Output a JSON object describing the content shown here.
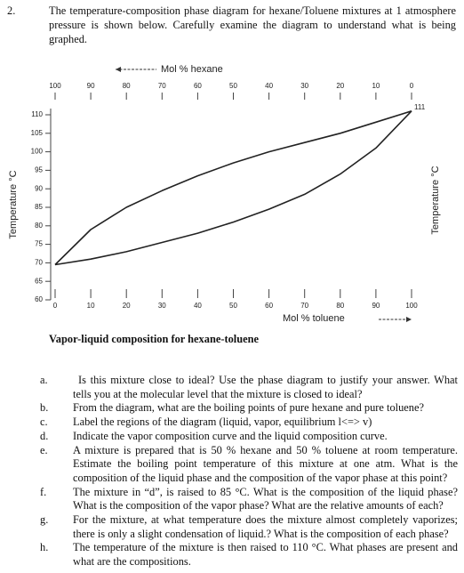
{
  "question_number": "2.",
  "intro": [
    "The temperature-composition phase diagram for hexane/Toluene mixtures at 1 atmosphere",
    "pressure is shown below. Carefully examine the diagram to understand what is being",
    "graphed."
  ],
  "chart_data": {
    "type": "line",
    "x2label": "Mol % hexane",
    "xlabel": "Mol % toluene",
    "ylabel": "Temperature °C",
    "y2label": "Temperature °C",
    "annotation": "111",
    "x": [
      0,
      10,
      20,
      30,
      40,
      50,
      60,
      70,
      80,
      90,
      100
    ],
    "series": [
      {
        "color": "#222",
        "values": [
          69.5,
          71,
          73,
          75.5,
          78,
          81,
          84.5,
          88.5,
          94,
          101,
          111
        ]
      },
      {
        "color": "#222",
        "values": [
          69.5,
          79,
          85,
          89.5,
          93.5,
          97,
          100,
          102.5,
          105,
          108,
          111
        ]
      }
    ],
    "xlim": [
      0,
      100
    ],
    "xticks": [
      0,
      10,
      20,
      30,
      40,
      50,
      60,
      70,
      80,
      90,
      100
    ],
    "x2lim": [
      100,
      0
    ],
    "x2ticks": [
      100,
      90,
      80,
      70,
      60,
      50,
      40,
      30,
      20,
      10,
      0
    ],
    "ylim": [
      60,
      110
    ],
    "yticks": [
      60,
      65,
      70,
      75,
      80,
      85,
      90,
      95,
      100,
      105,
      110
    ]
  },
  "caption": "Vapor-liquid composition for hexane-toluene",
  "questions": [
    {
      "label": "a.",
      "lines": [
        "Is this mixture close to ideal? Use the phase diagram to justify your answer. What",
        "tells you at the molecular level that the mixture is closed to ideal?"
      ]
    },
    {
      "label": "b.",
      "lines": [
        "From the diagram, what are the boiling points of pure hexane and pure toluene?"
      ]
    },
    {
      "label": "c.",
      "lines": [
        "Label the regions of the diagram (liquid, vapor, equilibrium l<=> v)"
      ]
    },
    {
      "label": "d.",
      "lines": [
        "Indicate the vapor composition curve and the liquid composition curve."
      ]
    },
    {
      "label": "e.",
      "lines": [
        "A mixture is prepared that is 50 % hexane and 50 % toluene at room temperature.",
        "Estimate the boiling point temperature of this mixture at one atm. What is the",
        "composition of the liquid phase and the composition of the vapor phase at this point?"
      ]
    },
    {
      "label": "f.",
      "lines": [
        "The mixture in “d”, is raised to 85 °C. What is the composition of the liquid phase?",
        "What is the composition of the vapor phase? What are the relative amounts of each?"
      ]
    },
    {
      "label": "g.",
      "lines": [
        "For the mixture, at what temperature does the mixture almost completely vaporizes;",
        "there is only a slight condensation of liquid.? What is the composition of each phase?"
      ]
    },
    {
      "label": "h.",
      "lines": [
        "The temperature of the mixture is then raised to 110 °C. What phases are present and",
        "what are the compositions."
      ]
    }
  ]
}
